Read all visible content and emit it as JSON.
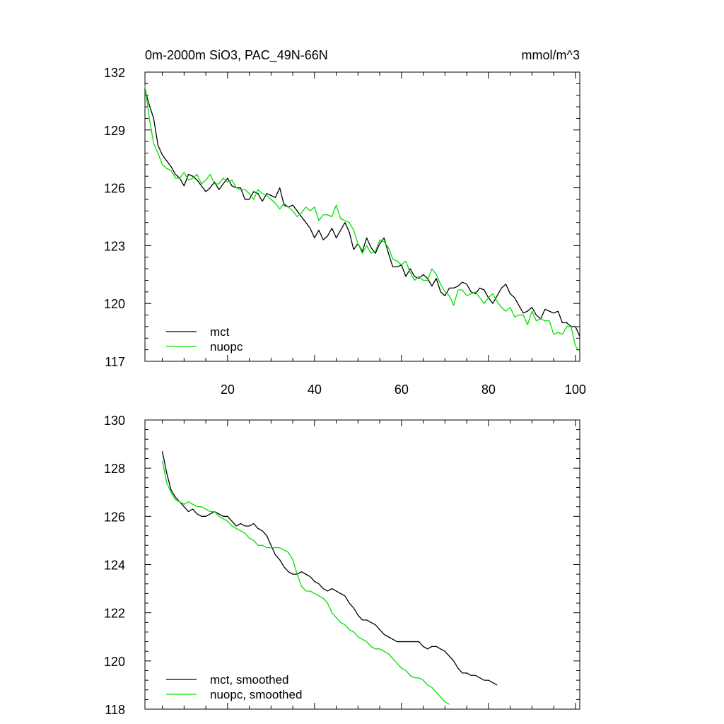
{
  "chart_data": [
    {
      "type": "line",
      "title": "0m-2000m SiO3, PAC_49N-66N",
      "units": "mmol/m^3",
      "xlim": [
        1,
        101
      ],
      "ylim": [
        117,
        132
      ],
      "xticks": [
        20,
        40,
        60,
        80,
        100
      ],
      "yticks": [
        117,
        120,
        123,
        126,
        129,
        132
      ],
      "x_start": 1,
      "legend_position": "bottom-left",
      "series": [
        {
          "name": "mct",
          "color": "#000000",
          "values": [
            131.1,
            130.3,
            129.6,
            128.2,
            127.7,
            127.4,
            127.1,
            126.7,
            126.5,
            126.1,
            126.7,
            126.6,
            126.4,
            126.1,
            125.8,
            126.0,
            126.3,
            125.9,
            126.2,
            126.5,
            126.1,
            126.0,
            126.0,
            125.4,
            125.4,
            125.8,
            125.7,
            125.3,
            125.7,
            125.6,
            125.5,
            126.0,
            125.1,
            125.0,
            125.1,
            124.8,
            124.5,
            124.2,
            123.9,
            123.4,
            123.8,
            123.3,
            123.5,
            123.9,
            123.4,
            123.8,
            124.2,
            123.7,
            122.8,
            123.1,
            122.7,
            123.4,
            122.9,
            122.6,
            123.1,
            123.4,
            122.6,
            121.9,
            121.9,
            122.0,
            121.4,
            121.8,
            121.4,
            121.3,
            121.5,
            121.3,
            120.9,
            121.3,
            120.6,
            120.4,
            120.8,
            120.8,
            120.9,
            121.1,
            121.0,
            120.6,
            120.5,
            120.8,
            120.7,
            120.3,
            120.0,
            120.4,
            120.8,
            121.0,
            120.5,
            120.3,
            119.9,
            119.5,
            119.6,
            119.8,
            119.4,
            119.2,
            119.7,
            119.6,
            119.5,
            119.6,
            119.0,
            119.0,
            118.8,
            118.8,
            118.3
          ]
        },
        {
          "name": "nuopc",
          "color": "#00e000",
          "values": [
            131.3,
            129.6,
            128.3,
            127.8,
            127.2,
            127.0,
            126.9,
            126.5,
            126.5,
            126.8,
            126.4,
            126.5,
            126.7,
            126.2,
            126.4,
            126.7,
            126.2,
            126.2,
            126.5,
            126.3,
            126.4,
            126.0,
            125.9,
            125.9,
            125.7,
            125.4,
            125.9,
            125.7,
            125.6,
            125.4,
            125.2,
            124.9,
            125.2,
            125.0,
            124.8,
            124.5,
            124.7,
            125.0,
            124.8,
            125.0,
            124.3,
            124.6,
            124.6,
            124.5,
            125.1,
            124.4,
            124.3,
            124.2,
            123.8,
            123.1,
            122.6,
            123.0,
            122.6,
            122.7,
            123.3,
            123.2,
            122.9,
            122.3,
            122.2,
            122.0,
            122.2,
            121.6,
            121.2,
            121.4,
            121.2,
            121.2,
            121.8,
            121.5,
            121.0,
            120.6,
            120.4,
            119.9,
            120.7,
            120.7,
            120.4,
            120.5,
            120.6,
            120.3,
            120.0,
            120.3,
            120.5,
            120.1,
            119.8,
            119.6,
            119.8,
            119.3,
            119.4,
            119.4,
            118.9,
            119.6,
            119.1,
            119.2,
            119.1,
            119.1,
            118.4,
            118.5,
            118.4,
            118.8,
            118.8,
            117.8,
            117.5
          ]
        }
      ]
    },
    {
      "type": "line",
      "ylim": [
        118,
        130
      ],
      "xlim": [
        1,
        101
      ],
      "yticks": [
        118,
        120,
        122,
        124,
        126,
        128,
        130
      ],
      "x_start": 5,
      "legend_position": "bottom-left",
      "series": [
        {
          "name": "mct, smoothed",
          "color": "#000000",
          "values": [
            128.7,
            127.8,
            127.1,
            126.8,
            126.6,
            126.4,
            126.2,
            126.3,
            126.1,
            126.0,
            126.0,
            126.1,
            126.2,
            126.1,
            126.0,
            126.0,
            125.8,
            125.6,
            125.7,
            125.6,
            125.6,
            125.7,
            125.5,
            125.4,
            125.2,
            124.8,
            124.4,
            124.2,
            123.9,
            123.7,
            123.6,
            123.6,
            123.7,
            123.6,
            123.5,
            123.3,
            123.2,
            123.0,
            122.9,
            123.0,
            122.9,
            122.8,
            122.7,
            122.4,
            122.2,
            121.9,
            121.7,
            121.7,
            121.6,
            121.5,
            121.3,
            121.1,
            121.0,
            120.9,
            120.8,
            120.8,
            120.8,
            120.8,
            120.8,
            120.8,
            120.6,
            120.5,
            120.6,
            120.6,
            120.5,
            120.4,
            120.2,
            120.0,
            119.7,
            119.5,
            119.5,
            119.4,
            119.4,
            119.3,
            119.2,
            119.2,
            119.1,
            119.0
          ]
        },
        {
          "name": "nuopc, smoothed",
          "color": "#00e000",
          "values": [
            128.3,
            127.4,
            127.0,
            126.7,
            126.6,
            126.5,
            126.6,
            126.5,
            126.4,
            126.4,
            126.3,
            126.2,
            126.2,
            126.0,
            125.9,
            125.8,
            125.6,
            125.5,
            125.4,
            125.3,
            125.1,
            125.0,
            124.8,
            124.8,
            124.7,
            124.7,
            124.7,
            124.7,
            124.6,
            124.5,
            124.2,
            123.6,
            123.1,
            122.9,
            122.9,
            122.8,
            122.7,
            122.6,
            122.4,
            122.0,
            121.8,
            121.6,
            121.5,
            121.3,
            121.2,
            121.0,
            120.9,
            120.8,
            120.6,
            120.5,
            120.5,
            120.4,
            120.3,
            120.1,
            119.9,
            119.7,
            119.6,
            119.4,
            119.3,
            119.3,
            119.2,
            119.0,
            118.9,
            118.7,
            118.5,
            118.3,
            118.2
          ]
        }
      ]
    }
  ]
}
